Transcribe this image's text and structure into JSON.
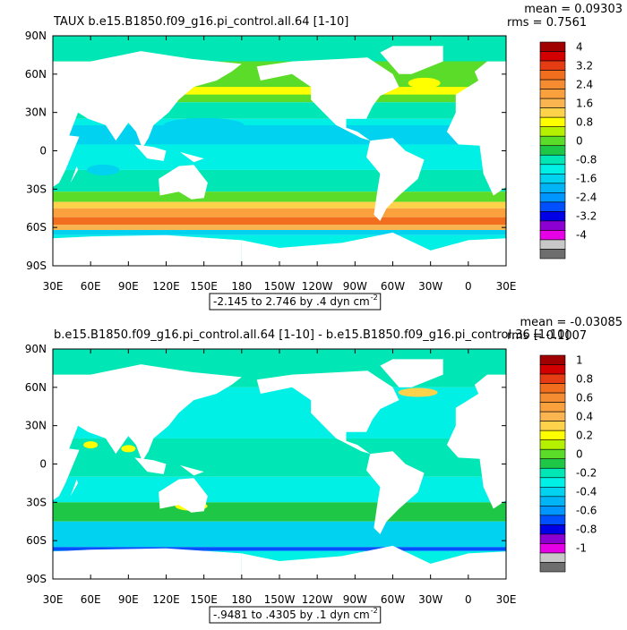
{
  "panels": [
    {
      "title": "TAUX b.e15.B1850.f09_g16.pi_control.all.64 [1-10]",
      "mean": "mean = 0.09303",
      "rms": "rms = 0.7561",
      "lat_labels": [
        "90N",
        "60N",
        "30N",
        "0",
        "30S",
        "60S",
        "90S"
      ],
      "lon_labels": [
        "30E",
        "60E",
        "90E",
        "120E",
        "150E",
        "180",
        "150W",
        "120W",
        "90W",
        "60W",
        "30W",
        "0",
        "30E"
      ],
      "colorbar_labels": [
        "4",
        "3.2",
        "2.4",
        "1.6",
        "0.8",
        "0",
        "-0.8",
        "-1.6",
        "-2.4",
        "-3.2",
        "-4"
      ],
      "range_label": "-2.145 to 2.746 by .4 dyn cm",
      "range_exponent": "-2"
    },
    {
      "title": "b.e15.B1850.f09_g16.pi_control.all.64 [1-10] - b.e15.B1850.f09_g16.pi_control.36 [1-10]",
      "mean": "mean = -0.03085",
      "rms": "rms = 0.1007",
      "lat_labels": [
        "90N",
        "60N",
        "30N",
        "0",
        "30S",
        "60S",
        "90S"
      ],
      "lon_labels": [
        "30E",
        "60E",
        "90E",
        "120E",
        "150E",
        "180",
        "150W",
        "120W",
        "90W",
        "60W",
        "30W",
        "0",
        "30E"
      ],
      "colorbar_labels": [
        "1",
        "0.8",
        "0.6",
        "0.4",
        "0.2",
        "0",
        "-0.2",
        "-0.4",
        "-0.6",
        "-0.8",
        "-1"
      ],
      "range_label": "-.9481 to .4305 by .1 dyn cm",
      "range_exponent": "-2"
    }
  ],
  "colorbar_colors": [
    "#a00000",
    "#d20000",
    "#e63c14",
    "#f06e1e",
    "#f58c32",
    "#faa03c",
    "#fab450",
    "#ffd24b",
    "#ffff00",
    "#b4f000",
    "#5adc28",
    "#1ec846",
    "#00e6b4",
    "#00f0e6",
    "#00d2f0",
    "#00b4f5",
    "#0096ff",
    "#0050ff",
    "#0000e6",
    "#8c00d2",
    "#e600e6",
    "#c8c8c8",
    "#6e6e6e"
  ]
}
